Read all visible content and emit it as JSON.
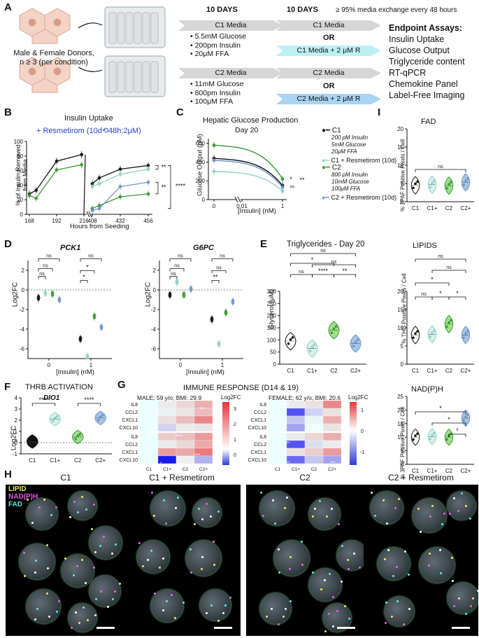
{
  "panelA": {
    "label": "A",
    "donors": "Male & Female Donors,",
    "n": "n ≥ 3 (per condition)",
    "days1": "10 DAYS",
    "days2": "10 DAYS",
    "exchange": "≥ 95% media exchange every 48 hours",
    "c1_media": "C1 Media",
    "c1_items": [
      "5.5mM Glucose",
      "200pm Insulin",
      "20μM FFA"
    ],
    "c1_media_b": "C1 Media",
    "or1": "OR",
    "c1_r": "C1 Media + 2 μM R",
    "c2_media": "C2 Media",
    "c2_items": [
      "11mM Glucose",
      "800pm Insulin",
      "100μM FFA"
    ],
    "c2_media_b": "C2 Media",
    "or2": "OR",
    "c2_r": "C2 Media + 2 μM R",
    "endpoint_title": "Endpoint Assays:",
    "endpoints": [
      "Insulin Uptake",
      "Glucose Output",
      "Triglyceride content",
      "RT-qPCR",
      "Chemokine Panel",
      "Label-Free Imaging"
    ]
  },
  "panelB": {
    "label": "B",
    "title": "Insulin Uptake",
    "subtitle": "+ Resmetirom (10d⟲48h;2μM)",
    "ylabel1": "% of Insulin Removed",
    "ylabel2": "from Media",
    "xlabel": "Hours from Seeding",
    "chart_data": {
      "type": "line",
      "x_left": [
        168,
        192,
        216
      ],
      "x_right": [
        408,
        432,
        456
      ],
      "yticks": [
        0,
        20,
        40,
        60,
        80,
        100
      ],
      "ylim": [
        0,
        100
      ],
      "series": [
        {
          "name": "C1",
          "color": "#111111",
          "left": [
            [
              168,
              28
            ],
            [
              174,
              33
            ],
            [
              192,
              73
            ],
            [
              214,
              82
            ]
          ],
          "right": [
            [
              408,
              42
            ],
            [
              414,
              50
            ],
            [
              432,
              62
            ],
            [
              456,
              67
            ]
          ]
        },
        {
          "name": "C2",
          "color": "#3d9a36",
          "left": [
            [
              168,
              26
            ],
            [
              174,
              22
            ],
            [
              192,
              61
            ],
            [
              214,
              68
            ]
          ],
          "right": [
            [
              408,
              8
            ],
            [
              414,
              12
            ],
            [
              432,
              24
            ],
            [
              456,
              28
            ]
          ]
        },
        {
          "name": "C1+",
          "color": "#8fd1c4",
          "left": [],
          "right": [
            [
              408,
              38
            ],
            [
              414,
              42
            ],
            [
              432,
              55
            ],
            [
              456,
              62
            ]
          ]
        },
        {
          "name": "C2+",
          "color": "#6f97c9",
          "left": [],
          "right": [
            [
              408,
              5
            ],
            [
              414,
              8
            ],
            [
              432,
              38
            ],
            [
              456,
              44
            ]
          ]
        }
      ],
      "sig": [
        "**",
        "**",
        "****"
      ]
    }
  },
  "panelC": {
    "label": "C",
    "title": "Hepatic Glucose Production",
    "subtitle": "Day 20",
    "ylabel": "Glucose Output (μM)",
    "xlabel": "[Insulin] (nM)",
    "chart_data": {
      "type": "line",
      "xticks": [
        "0",
        "0.01",
        "1"
      ],
      "yticks": [
        0,
        200,
        400,
        600
      ],
      "ylim": [
        0,
        650
      ],
      "series": [
        {
          "name": "C1",
          "color": "#111111",
          "values": [
            440,
            420,
            150
          ]
        },
        {
          "name": "C1 + Resmetirom (10d)",
          "color": "#8fd1c4",
          "values": [
            300,
            290,
            90
          ]
        },
        {
          "name": "C2",
          "color": "#3d9a36",
          "values": [
            580,
            560,
            220
          ]
        },
        {
          "name": "C2 + Resmetirom (10d)",
          "color": "#6f97c9",
          "values": [
            420,
            400,
            130
          ]
        }
      ],
      "sig": [
        "*",
        "**",
        "ns"
      ]
    },
    "legend": {
      "c1": "C1",
      "c1_l1": "200 pM Insulin",
      "c1_l2": "5mM Glucose",
      "c1_l3": "20μM FFA",
      "c1r": "C1 + Resmetirom (10d)",
      "c2": "C2",
      "c2_l1": "800 pM Insulin",
      "c2_l2": "10mM Glucose",
      "c2_l3": "100μM FFA",
      "c2r": "C2 + Resmetirom (10d)"
    }
  },
  "panelD": {
    "label": "D",
    "title1": "PCK1",
    "title2": "G6PC",
    "ylabel": "Log2FC",
    "xlabel": "[Insulin] (nM)",
    "chart_data": [
      {
        "type": "scatter",
        "title": "PCK1",
        "xticks": [
          "0",
          "1"
        ],
        "yticks": [
          2,
          0,
          -2,
          -4,
          -6
        ],
        "ylim": [
          -7,
          3
        ],
        "groups": [
          {
            "x": "0",
            "C1": -0.8,
            "C1+": -0.3,
            "C2": -0.4,
            "C2+": -1.0
          },
          {
            "x": "1",
            "C1": -5.0,
            "C1+": -6.8,
            "C2": -2.7,
            "C2+": -3.8
          }
        ],
        "sig": [
          "ns",
          "ns",
          "ns",
          "ns",
          "*",
          "*"
        ]
      },
      {
        "type": "scatter",
        "title": "G6PC",
        "xticks": [
          "0",
          "1"
        ],
        "yticks": [
          2,
          0,
          -2,
          -4,
          -6
        ],
        "ylim": [
          -7,
          3
        ],
        "groups": [
          {
            "x": "0",
            "C1": -0.5,
            "C1+": 0.8,
            "C2": -0.5,
            "C2+": 0.1
          },
          {
            "x": "1",
            "C1": -3.0,
            "C1+": -5.5,
            "C2": -2.3,
            "C2+": -1.2
          }
        ],
        "sig": [
          "ns",
          "ns",
          "ns",
          "ns",
          "**",
          "ns"
        ]
      }
    ]
  },
  "panelE": {
    "label": "E",
    "title1": "Triglycerides - Day 20",
    "title2": "LIPIDS",
    "ylabel1": "Glycerol (μM)",
    "ylabel2": "% THG Positive Pixels / Cell",
    "chart_data": [
      {
        "type": "violin",
        "categories": [
          "C1",
          "C1+",
          "C2",
          "C2+"
        ],
        "medians": [
          95,
          65,
          140,
          85
        ],
        "yticks": [
          0,
          50,
          100,
          150,
          200,
          250,
          300
        ],
        "ylim": [
          0,
          300
        ],
        "sig": [
          "ns",
          "*",
          "****",
          "ns",
          "ns",
          "**"
        ]
      },
      {
        "type": "violin",
        "categories": [
          "C1",
          "C1+",
          "C2",
          "C2+"
        ],
        "medians": [
          8,
          8.2,
          11,
          8
        ],
        "yticks": [
          0,
          5,
          10,
          15,
          20
        ],
        "ylim": [
          0,
          20
        ],
        "sig": [
          "ns",
          "*",
          "*",
          "ns",
          "ns",
          "*"
        ]
      }
    ]
  },
  "panelF": {
    "label": "F",
    "title": "THRB ACTIVATION",
    "subtitle": "DIO1",
    "ylabel": "Log2FC",
    "chart_data": {
      "type": "violin",
      "categories": [
        "C1",
        "C1+",
        "C2",
        "C2+"
      ],
      "medians": [
        0.1,
        2.1,
        0.5,
        2.2
      ],
      "yticks": [
        -1,
        0,
        1,
        2,
        3,
        4
      ],
      "ylim": [
        -1,
        4
      ],
      "sig": [
        "****",
        "****"
      ]
    }
  },
  "panelG": {
    "label": "G",
    "title": "IMMUNE RESPONSE (D14 & 19)",
    "male": "MALE; 59 y/o; BMI: 29.9",
    "female": "FEMALE; 62 y/o; BMI: 20.6",
    "legend_title": "Log2FC",
    "rows": [
      "IL8",
      "CCL2",
      "CXCL1",
      "CXCL10"
    ],
    "cols": [
      "C1",
      "C1+",
      "C2",
      "C2+"
    ],
    "chart_data": {
      "type": "heatmap",
      "male_top": [
        [
          0,
          0.3,
          0.6,
          1.2
        ],
        [
          0,
          0.2,
          0.4,
          1.0
        ],
        [
          0,
          0.5,
          1.0,
          1.8
        ],
        [
          0,
          -0.6,
          0.3,
          0.4
        ]
      ],
      "male_bottom": [
        [
          0,
          0.8,
          1.0,
          1.5
        ],
        [
          0,
          0.3,
          0.6,
          1.3
        ],
        [
          0,
          1.5,
          1.3,
          2.0
        ],
        [
          0,
          -3.0,
          -0.2,
          -1.0
        ]
      ],
      "female_top": [
        [
          0,
          0.2,
          0.3,
          1.2
        ],
        [
          0,
          -1.5,
          -0.4,
          0.3
        ],
        [
          0,
          -0.5,
          0.1,
          0.8
        ],
        [
          0,
          -0.8,
          0.0,
          0.3
        ]
      ],
      "female_bottom": [
        [
          0,
          0.2,
          0.4,
          0.8
        ],
        [
          0,
          -1.5,
          -0.3,
          0.2
        ],
        [
          0,
          0.3,
          0.5,
          1.0
        ],
        [
          0,
          -1.3,
          -0.5,
          -0.8
        ]
      ],
      "male_scale": [
        3,
        2,
        1,
        0
      ],
      "female_scale": [
        1,
        0,
        -1
      ]
    }
  },
  "panelH": {
    "label": "H",
    "legend": [
      "LIPID",
      "NAD(P)H",
      "FAD"
    ],
    "captions": [
      "C1",
      "C1 + Resmetirom",
      "C2",
      "C2 + Resmetirom"
    ]
  },
  "panelI": {
    "label": "I",
    "title1": "FAD",
    "title2": "NAD(P)H",
    "ylabel1": "% 2PAF Positive Pixels / Cell",
    "ylabel2": "% 3PAF Positive Pixels / Cell",
    "chart_data": [
      {
        "type": "violin",
        "categories": [
          "C1",
          "C1+",
          "C2",
          "C2+"
        ],
        "medians": [
          4.5,
          4.7,
          4.4,
          5.3
        ],
        "yticks": [
          0,
          5,
          10,
          15,
          20
        ],
        "ylim": [
          0,
          20
        ],
        "sig": [
          "ns"
        ]
      },
      {
        "type": "violin",
        "categories": [
          "C1",
          "C1+",
          "C2",
          "C2+"
        ],
        "medians": [
          10,
          10.2,
          10,
          17
        ],
        "yticks": [
          0,
          5,
          10,
          15,
          20,
          25
        ],
        "ylim": [
          0,
          25
        ],
        "sig": [
          "*",
          "*",
          "*"
        ]
      }
    ]
  }
}
